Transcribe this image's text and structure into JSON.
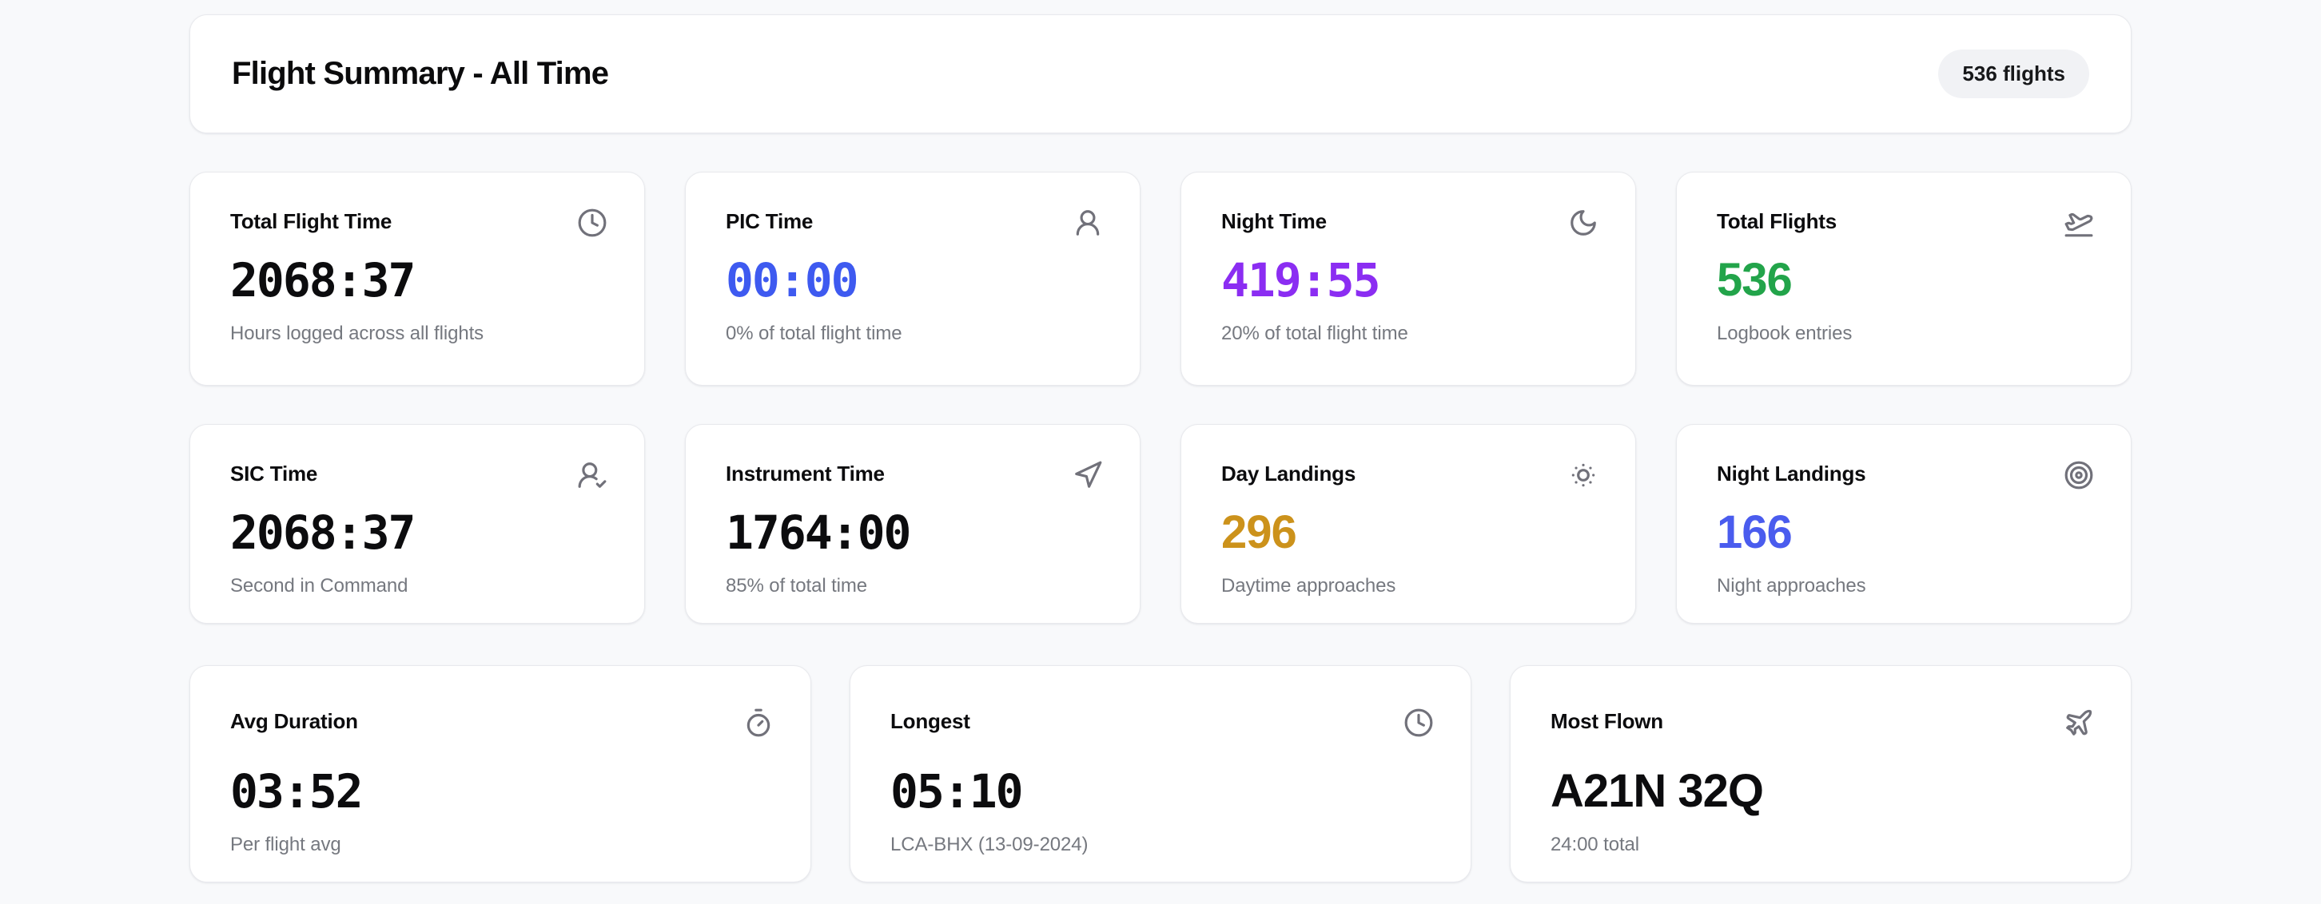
{
  "page": {
    "background": "#f8f9fb",
    "card_background": "#ffffff",
    "card_border": "#e8e9ed"
  },
  "header": {
    "title": "Flight Summary - All Time",
    "badge": "536 flights",
    "badge_background": "#f1f2f5"
  },
  "icon_color": "#71717a",
  "stat_cards": [
    {
      "title": "Total Flight Time",
      "value": "2068:37",
      "subtitle": "Hours logged across all flights",
      "icon": "clock",
      "value_color": "#0c0c0e",
      "value_font": "mono"
    },
    {
      "title": "PIC Time",
      "value": "00:00",
      "subtitle": "0% of total flight time",
      "icon": "user",
      "value_color": "#3e5af0",
      "value_font": "mono"
    },
    {
      "title": "Night Time",
      "value": "419:55",
      "subtitle": "20% of total flight time",
      "icon": "moon",
      "value_color": "#8b2df2",
      "value_font": "mono"
    },
    {
      "title": "Total Flights",
      "value": "536",
      "subtitle": "Logbook entries",
      "icon": "plane-takeoff",
      "value_color": "#22a44a",
      "value_font": "sans"
    },
    {
      "title": "SIC Time",
      "value": "2068:37",
      "subtitle": "Second in Command",
      "icon": "user-check",
      "value_color": "#0c0c0e",
      "value_font": "mono"
    },
    {
      "title": "Instrument Time",
      "value": "1764:00",
      "subtitle": "85% of total time",
      "icon": "navigation",
      "value_color": "#0c0c0e",
      "value_font": "mono"
    },
    {
      "title": "Day Landings",
      "value": "296",
      "subtitle": "Daytime approaches",
      "icon": "sun",
      "value_color": "#cc921b",
      "value_font": "sans"
    },
    {
      "title": "Night Landings",
      "value": "166",
      "subtitle": "Night approaches",
      "icon": "target",
      "value_color": "#4a5cee",
      "value_font": "sans"
    }
  ],
  "summary_cards": [
    {
      "title": "Avg Duration",
      "value": "03:52",
      "subtitle": "Per flight avg",
      "icon": "timer",
      "value_color": "#0c0c0e",
      "value_font": "mono"
    },
    {
      "title": "Longest",
      "value": "05:10",
      "subtitle": "LCA-BHX (13-09-2024)",
      "icon": "clock",
      "value_color": "#0c0c0e",
      "value_font": "mono"
    },
    {
      "title": "Most Flown",
      "value": "A21N 32Q",
      "subtitle": "24:00 total",
      "icon": "plane",
      "value_color": "#0c0c0e",
      "value_font": "sans"
    }
  ]
}
